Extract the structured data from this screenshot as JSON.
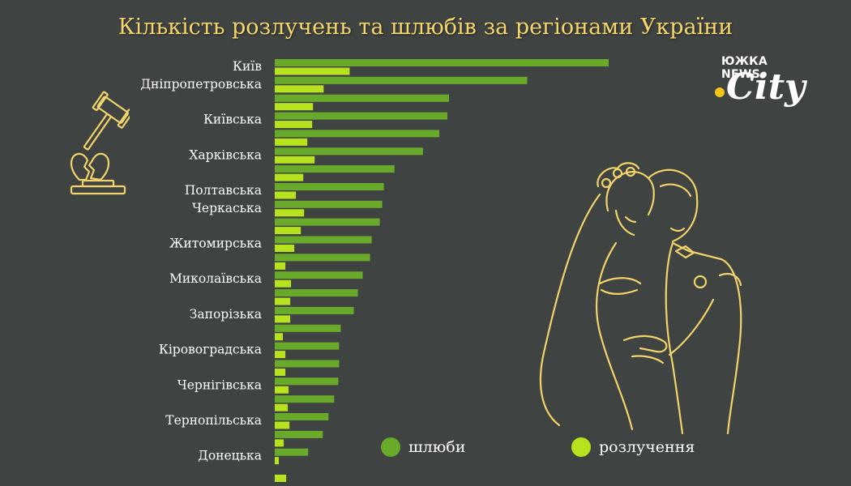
{
  "title": "Кількість розлучень та шлюбів за регіонами України",
  "logo": {
    "top_text": "ЮЖКА NEWS",
    "city_text": "City",
    "dot_color": "#f5c518"
  },
  "colors": {
    "background": "#3f4342",
    "title": "#f5d66b",
    "marriages": "#6aaa2a",
    "divorces": "#b7e21e",
    "illustration": "#f1d36a"
  },
  "legend": {
    "marriages": "шлюби",
    "divorces": "розлучення"
  },
  "chart_data": {
    "type": "bar",
    "orientation": "horizontal",
    "title": "Кількість розлучень та шлюбів за регіонами України",
    "category_labels": [
      "Київ",
      "Дніпропетровська",
      "Київська",
      "Харківська",
      "Полтавська",
      "Черкаська",
      "Житомирська",
      "Миколаївська",
      "Запорізька",
      "Кіровоградська",
      "Чернігівська",
      "Тернопільська",
      "Донецька"
    ],
    "rows": 24,
    "label_rows": [
      0,
      1,
      3,
      5,
      7,
      8,
      10,
      12,
      14,
      16,
      18,
      20,
      22
    ],
    "series": [
      {
        "name": "шлюби",
        "values": [
          410,
          310,
          214,
          212,
          202,
          182,
          147,
          134,
          132,
          129,
          119,
          117,
          108,
          102,
          97,
          81,
          79,
          79,
          78,
          73,
          66,
          59,
          41,
          0
        ]
      },
      {
        "name": "розлучення",
        "values": [
          92,
          60,
          47,
          46,
          40,
          49,
          35,
          26,
          36,
          32,
          24,
          13,
          20,
          19,
          19,
          10,
          13,
          13,
          17,
          16,
          18,
          11,
          5,
          14
        ]
      }
    ],
    "xlim": [
      0,
      420
    ],
    "grid": false,
    "legend_position": "bottom"
  }
}
